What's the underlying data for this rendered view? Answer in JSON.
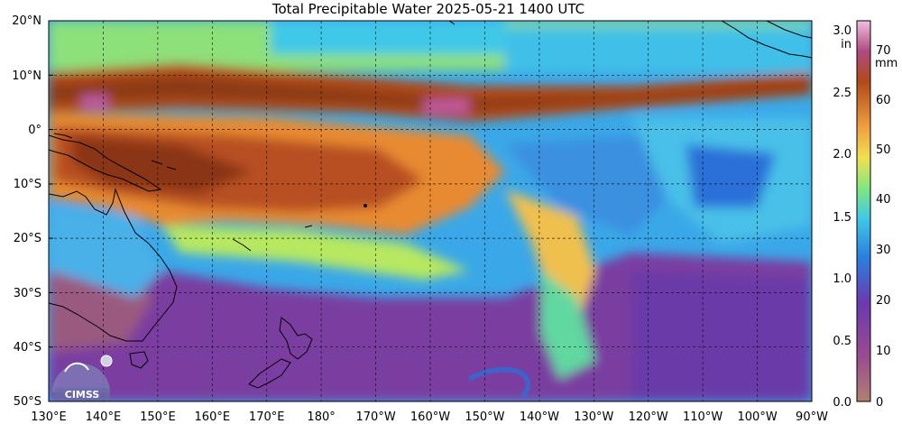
{
  "title": "Total Precipitable Water  2025-05-21 1400 UTC",
  "lat_labels": [
    "20°N",
    "10°N",
    "0°",
    "10°S",
    "20°S",
    "30°S",
    "40°S",
    "50°S"
  ],
  "lon_labels": [
    "130°E",
    "140°E",
    "150°E",
    "160°E",
    "170°E",
    "180°",
    "170°W",
    "160°W",
    "150°W",
    "140°W",
    "130°W",
    "120°W",
    "110°W",
    "100°W",
    "90°W"
  ],
  "colorbar": {
    "left_unit": "in",
    "right_unit": "mm",
    "in_ticks": [
      "3.0",
      "2.5",
      "2.0",
      "1.5",
      "1.0",
      "0.5",
      "0.0"
    ],
    "mm_ticks": [
      "70",
      "60",
      "50",
      "40",
      "30",
      "20",
      "10",
      "0"
    ]
  },
  "logo_text": "CIMSS",
  "colors": {
    "dry": "#9a5a70",
    "low": "#7a3ea0",
    "blue": "#2f8fe0",
    "cyan": "#40c8e8",
    "green": "#8ee07a",
    "yellow": "#f0d850",
    "orange": "#f0a040",
    "brown": "#c05a20",
    "dark": "#8a3a18",
    "pink": "#d070c0"
  }
}
